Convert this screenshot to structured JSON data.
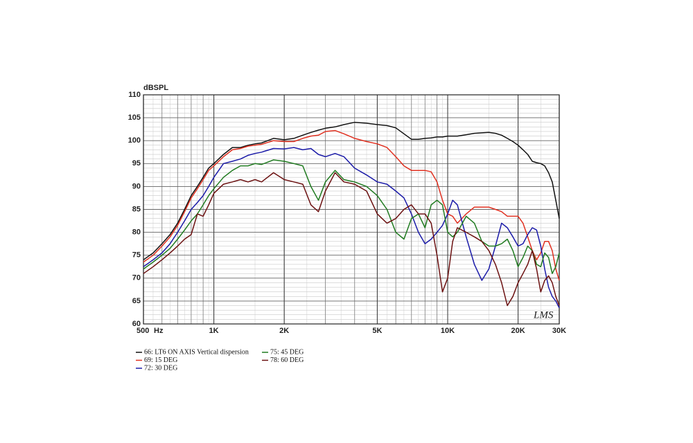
{
  "chart_data": {
    "type": "line",
    "y_label": "dBSPL",
    "x_label": "Hz",
    "annotation": "LMS",
    "xscale": "log",
    "grid": true,
    "x": [
      500,
      550,
      600,
      650,
      700,
      750,
      800,
      850,
      900,
      950,
      1000,
      1100,
      1200,
      1300,
      1400,
      1500,
      1600,
      1800,
      2000,
      2200,
      2400,
      2600,
      2800,
      3000,
      3300,
      3600,
      4000,
      4500,
      5000,
      5500,
      6000,
      6500,
      7000,
      7500,
      8000,
      8500,
      9000,
      9500,
      10000,
      10500,
      11000,
      12000,
      13000,
      14000,
      15000,
      16000,
      17000,
      18000,
      19000,
      20000,
      21000,
      22000,
      23000,
      24000,
      25000,
      26000,
      27000,
      28000,
      29000,
      30000
    ],
    "xlim": [
      500,
      30000
    ],
    "xticks": [
      500,
      {
        "value": 1000,
        "label": "1K"
      },
      {
        "value": 2000,
        "label": "2K"
      },
      {
        "value": 5000,
        "label": "5K"
      },
      {
        "value": 10000,
        "label": "10K"
      },
      {
        "value": 20000,
        "label": "20K"
      },
      {
        "value": 30000,
        "label": "30K"
      }
    ],
    "ylim": [
      60,
      110
    ],
    "yticks": [
      60,
      65,
      70,
      75,
      80,
      85,
      90,
      95,
      100,
      105,
      110
    ],
    "series": [
      {
        "name": "66: LT6 ON AXIS Vertical dispersion",
        "color": "#111111",
        "values": [
          74,
          75.5,
          77.5,
          79.5,
          82,
          85,
          88,
          90,
          92,
          94,
          95,
          97,
          98.5,
          98.5,
          99,
          99.3,
          99.5,
          100.5,
          100.2,
          100.5,
          101.2,
          101.8,
          102.3,
          102.7,
          103,
          103.5,
          104,
          103.8,
          103.5,
          103.3,
          102.8,
          101.5,
          100.3,
          100.3,
          100.5,
          100.6,
          100.8,
          100.8,
          101,
          101,
          101,
          101.3,
          101.6,
          101.7,
          101.8,
          101.6,
          101.2,
          100.5,
          99.8,
          99,
          98,
          97,
          95.5,
          95.2,
          95,
          94.5,
          93,
          91,
          87,
          83
        ]
      },
      {
        "name": "69: 15 DEG",
        "color": "#e03020",
        "values": [
          73.5,
          75,
          77,
          79,
          81.5,
          84.5,
          87.5,
          89.5,
          91.5,
          93.5,
          94.5,
          96.5,
          98,
          98.3,
          98.8,
          99,
          99.2,
          100,
          99.8,
          99.8,
          100.5,
          101,
          101.2,
          102,
          102.2,
          101.5,
          100.5,
          99.8,
          99.3,
          98.5,
          96.5,
          94.5,
          93.5,
          93.5,
          93.5,
          93.2,
          91,
          87,
          84,
          83.5,
          82,
          84,
          85.5,
          85.5,
          85.5,
          85,
          84.5,
          83.5,
          83.5,
          83.5,
          82,
          79,
          76,
          74,
          75.5,
          78,
          78,
          76,
          72,
          69.5
        ]
      },
      {
        "name": "72: 30 DEG",
        "color": "#1a1aa8",
        "values": [
          72.5,
          74,
          75.5,
          77.5,
          80,
          82.5,
          85,
          86.5,
          88,
          90,
          92,
          95,
          95.5,
          96,
          96.8,
          97.2,
          97.5,
          98.3,
          98.2,
          98.5,
          98,
          98.3,
          97,
          96.5,
          97.2,
          96.5,
          94,
          92.5,
          91,
          90.5,
          89,
          87.5,
          84,
          80,
          77.5,
          78.5,
          80,
          81.5,
          84,
          87,
          86,
          79,
          73,
          69.5,
          72,
          77,
          82,
          81,
          79,
          77,
          77.5,
          79.5,
          81,
          80.5,
          77,
          72,
          68,
          66,
          65,
          63.5
        ]
      },
      {
        "name": "75: 45 DEG",
        "color": "#1f7a1f",
        "values": [
          72,
          73.5,
          75,
          76.5,
          78.5,
          80.5,
          82.5,
          84,
          86,
          88,
          89.5,
          92,
          93.5,
          94.5,
          94.5,
          95,
          94.8,
          95.8,
          95.5,
          95,
          94.5,
          90,
          87,
          91,
          93.5,
          91.5,
          91,
          90,
          88,
          85,
          80,
          78.5,
          83,
          84,
          81,
          86,
          87,
          86,
          80,
          79,
          80,
          83.5,
          82,
          78,
          77,
          77,
          77.5,
          78.5,
          76,
          72.5,
          74.5,
          77,
          76,
          73,
          72.5,
          75.5,
          74.5,
          71,
          72.5,
          75.5
        ]
      },
      {
        "name": "78: 60 DEG",
        "color": "#6b1010",
        "values": [
          71,
          72.5,
          74,
          75.5,
          77,
          78.5,
          79.5,
          84,
          83.5,
          86,
          88.5,
          90.5,
          91,
          91.5,
          91,
          91.5,
          91,
          93,
          91.5,
          91,
          90.5,
          86,
          84.5,
          89,
          93,
          91,
          90.5,
          89,
          84,
          82,
          83,
          85,
          86,
          84,
          84,
          82,
          75,
          67,
          70,
          78,
          81,
          80,
          79,
          78,
          76,
          73,
          69,
          64,
          66,
          69,
          71,
          73,
          76,
          72,
          67,
          69.5,
          70.5,
          69,
          66,
          64
        ]
      }
    ]
  }
}
